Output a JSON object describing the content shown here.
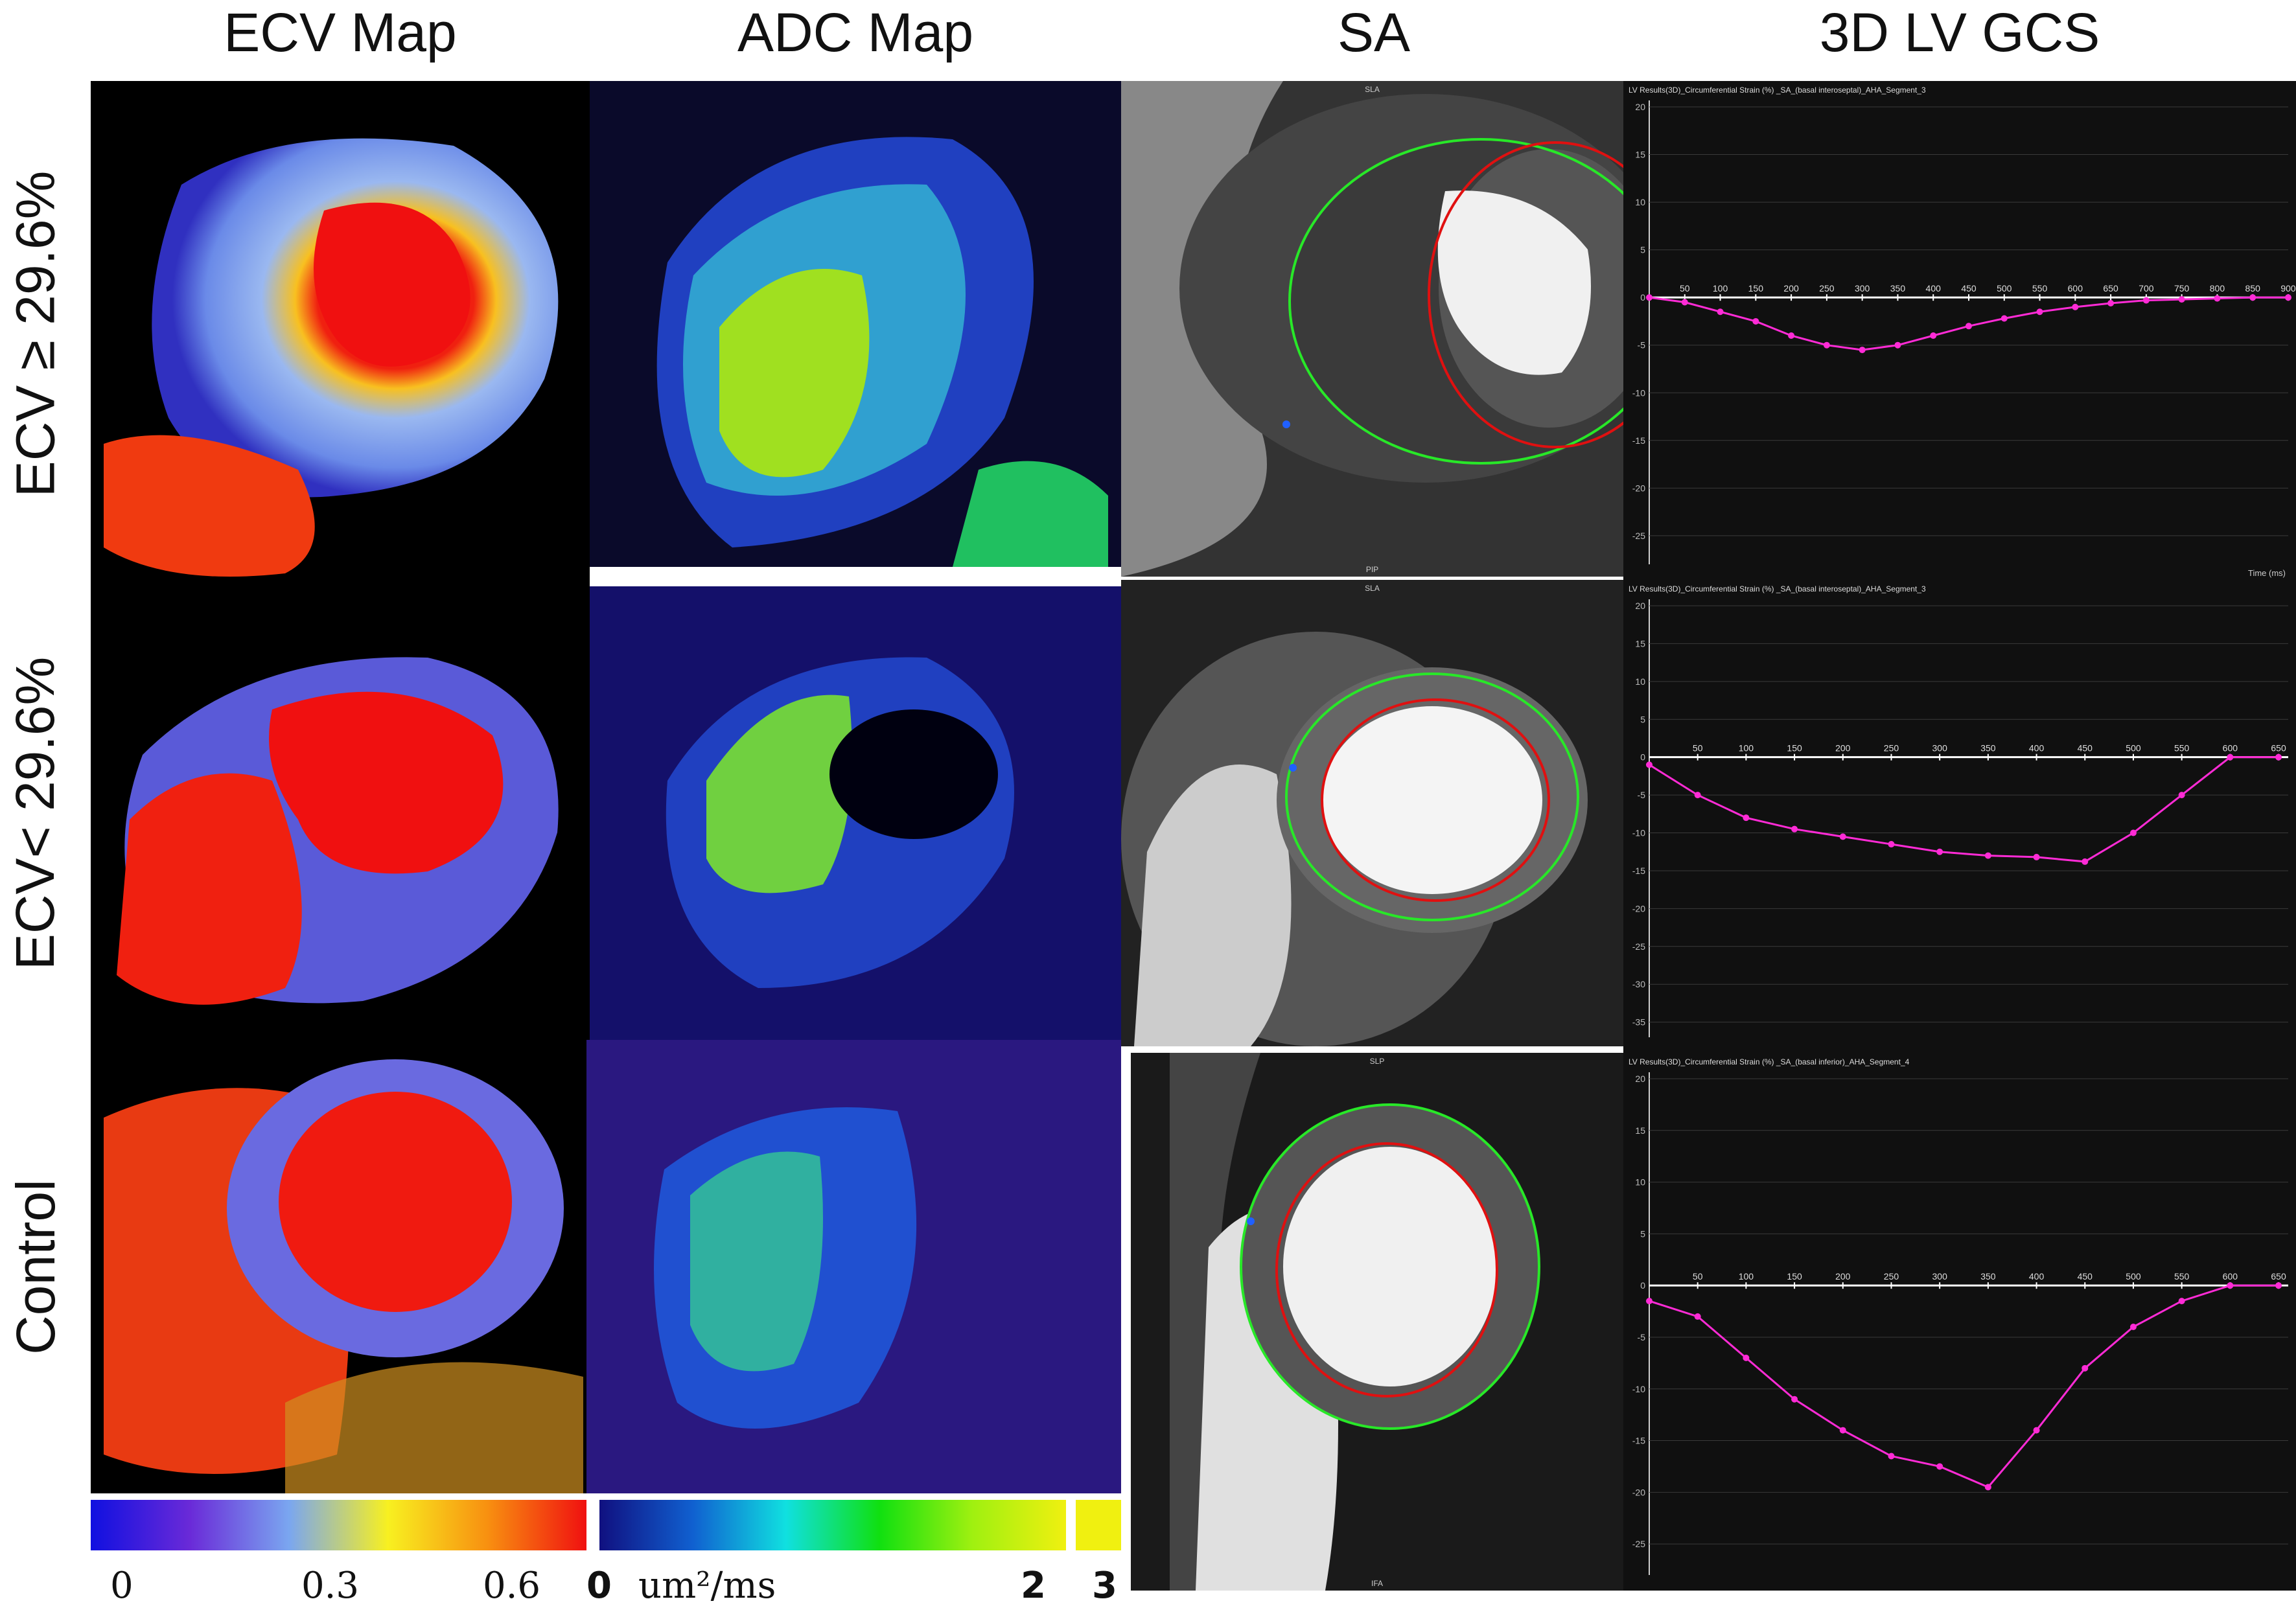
{
  "headers": {
    "ecv": "ECV Map",
    "adc": "ADC Map",
    "sa": "SA",
    "gcs": "3D LV GCS"
  },
  "rows": [
    {
      "label": "ECV ≥ 29.6%"
    },
    {
      "label": "ECV< 29.6%"
    },
    {
      "label": "Control"
    }
  ],
  "colorbars": {
    "ecv": {
      "labels": [
        "0",
        "0.3",
        "0.6"
      ],
      "stops": [
        "#1010e0",
        "#6a2ad8",
        "#7aa6f0",
        "#f8f020",
        "#f89010",
        "#f01010"
      ]
    },
    "adc": {
      "labels": [
        "0",
        "um²/ms",
        "2",
        "3"
      ],
      "stops": [
        "#101080",
        "#1060d0",
        "#10e0e0",
        "#10e010",
        "#a0f010",
        "#f0f010"
      ]
    }
  },
  "sa_markers": {
    "row1": {
      "top": "SLA",
      "bottom": "PIP"
    },
    "row2": {
      "top": "SLA"
    },
    "row3": {
      "top": "SLP",
      "bottom": "IFA"
    }
  },
  "chart_data": [
    {
      "type": "line",
      "title": "LV Results(3D)_Circumferential Strain (%) _SA_(basal interoseptal)_AHA_Segment_3",
      "xlabel": "Time (ms)",
      "ylabel": "",
      "x_ticks": [
        0,
        50,
        100,
        150,
        200,
        250,
        300,
        350,
        400,
        450,
        500,
        550,
        600,
        650,
        700,
        750,
        800,
        850,
        900
      ],
      "y_ticks": [
        20,
        15,
        10,
        5,
        0,
        -5,
        -10,
        -15,
        -20,
        -25
      ],
      "xlim": [
        0,
        900
      ],
      "ylim": [
        -28,
        20
      ],
      "grid": true,
      "series": [
        {
          "x": [
            0,
            50,
            100,
            150,
            200,
            250,
            300,
            350,
            400,
            450,
            500,
            550,
            600,
            650,
            700,
            750,
            800,
            850,
            900
          ],
          "values": [
            0,
            -0.5,
            -1.5,
            -2.5,
            -4,
            -5,
            -5.5,
            -5,
            -4,
            -3,
            -2.2,
            -1.5,
            -1,
            -0.6,
            -0.3,
            -0.2,
            -0.1,
            0,
            0
          ],
          "color": "#ff2bd6"
        }
      ]
    },
    {
      "type": "line",
      "title": "LV Results(3D)_Circumferential Strain (%) _SA_(basal interoseptal)_AHA_Segment_3",
      "xlabel": "",
      "ylabel": "",
      "x_ticks": [
        0,
        50,
        100,
        150,
        200,
        250,
        300,
        350,
        400,
        450,
        500,
        550,
        600,
        650
      ],
      "y_ticks": [
        20,
        15,
        10,
        5,
        0,
        -5,
        -10,
        -15,
        -20,
        -25,
        -30,
        -35
      ],
      "xlim": [
        0,
        660
      ],
      "ylim": [
        -37,
        20
      ],
      "grid": true,
      "series": [
        {
          "x": [
            0,
            50,
            100,
            150,
            200,
            250,
            300,
            350,
            400,
            450,
            500,
            550,
            600,
            650
          ],
          "values": [
            -1,
            -5,
            -8,
            -9.5,
            -10.5,
            -11.5,
            -12.5,
            -13,
            -13.2,
            -13.8,
            -10,
            -5,
            0,
            0
          ],
          "color": "#ff2bd6"
        }
      ]
    },
    {
      "type": "line",
      "title": "LV Results(3D)_Circumferential Strain (%) _SA_(basal inferior)_AHA_Segment_4",
      "xlabel": "",
      "ylabel": "",
      "x_ticks": [
        0,
        50,
        100,
        150,
        200,
        250,
        300,
        350,
        400,
        450,
        500,
        550,
        600,
        650
      ],
      "y_ticks": [
        20,
        15,
        10,
        5,
        0,
        -5,
        -10,
        -15,
        -20,
        -25
      ],
      "xlim": [
        0,
        660
      ],
      "ylim": [
        -28,
        20
      ],
      "grid": true,
      "series": [
        {
          "x": [
            0,
            50,
            100,
            150,
            200,
            250,
            300,
            350,
            400,
            450,
            500,
            550,
            600,
            650
          ],
          "values": [
            -1.5,
            -3,
            -7,
            -11,
            -14,
            -16.5,
            -17.5,
            -19.5,
            -14,
            -8,
            -4,
            -1.5,
            0,
            0
          ],
          "color": "#ff2bd6"
        }
      ]
    }
  ]
}
